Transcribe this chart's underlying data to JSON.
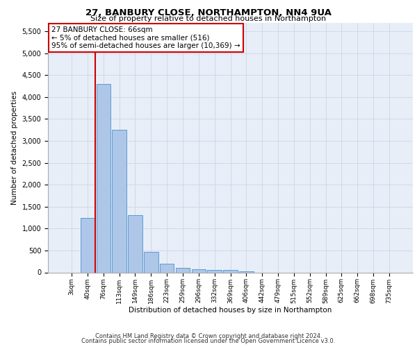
{
  "title1": "27, BANBURY CLOSE, NORTHAMPTON, NN4 9UA",
  "title2": "Size of property relative to detached houses in Northampton",
  "xlabel": "Distribution of detached houses by size in Northampton",
  "ylabel": "Number of detached properties",
  "footer1": "Contains HM Land Registry data © Crown copyright and database right 2024.",
  "footer2": "Contains public sector information licensed under the Open Government Licence v3.0.",
  "annotation_title": "27 BANBURY CLOSE: 66sqm",
  "annotation_line1": "← 5% of detached houses are smaller (516)",
  "annotation_line2": "95% of semi-detached houses are larger (10,369) →",
  "bar_categories": [
    "3sqm",
    "40sqm",
    "76sqm",
    "113sqm",
    "149sqm",
    "186sqm",
    "223sqm",
    "259sqm",
    "296sqm",
    "332sqm",
    "369sqm",
    "406sqm",
    "442sqm",
    "479sqm",
    "515sqm",
    "552sqm",
    "589sqm",
    "625sqm",
    "662sqm",
    "698sqm",
    "735sqm"
  ],
  "bar_values": [
    0,
    1250,
    4300,
    3250,
    1300,
    475,
    200,
    100,
    75,
    50,
    50,
    30,
    0,
    0,
    0,
    0,
    0,
    0,
    0,
    0,
    0
  ],
  "bar_color": "#aec6e8",
  "bar_edge_color": "#5b9bd5",
  "vline_color": "#cc0000",
  "vline_x": 1.5,
  "annotation_box_color": "#cc0000",
  "ylim": [
    0,
    5700
  ],
  "yticks": [
    0,
    500,
    1000,
    1500,
    2000,
    2500,
    3000,
    3500,
    4000,
    4500,
    5000,
    5500
  ],
  "grid_color": "#d0d8e8",
  "bg_color": "#e8eef8"
}
